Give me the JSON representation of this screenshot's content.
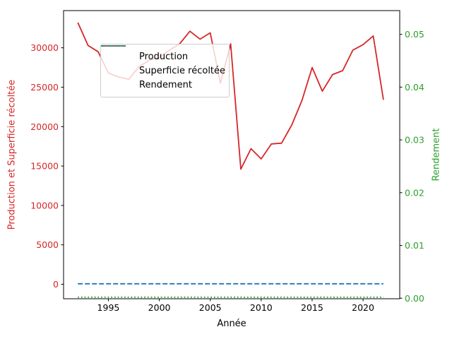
{
  "chart_data": {
    "type": "line",
    "title": "",
    "xlabel": "Année",
    "ylabel_left": "Production et Superficie récoltée",
    "ylabel_right": "Rendement",
    "x_years": [
      1992,
      1993,
      1994,
      1995,
      1996,
      1997,
      1998,
      1999,
      2000,
      2001,
      2002,
      2003,
      2004,
      2005,
      2006,
      2007,
      2008,
      2009,
      2010,
      2011,
      2012,
      2013,
      2014,
      2015,
      2016,
      2017,
      2018,
      2019,
      2020,
      2021,
      2022
    ],
    "series": [
      {
        "name": "Production",
        "color": "#d62728",
        "line_style": "solid",
        "axis": "left",
        "values": [
          33200,
          30300,
          29500,
          26800,
          26300,
          26000,
          27600,
          28400,
          28800,
          29700,
          30500,
          32100,
          31100,
          31900,
          25500,
          30500,
          14600,
          17200,
          15900,
          17800,
          17900,
          20200,
          23300,
          27500,
          24500,
          26600,
          27100,
          29700,
          30400,
          31500,
          23400
        ]
      },
      {
        "name": "Superficie récoltée",
        "color": "#1f77b4",
        "line_style": "dashed",
        "axis": "left",
        "values": [
          60,
          60,
          60,
          60,
          60,
          60,
          60,
          60,
          60,
          60,
          60,
          60,
          60,
          60,
          60,
          60,
          60,
          60,
          60,
          60,
          60,
          60,
          60,
          60,
          60,
          60,
          60,
          60,
          60,
          60,
          60
        ]
      },
      {
        "name": "Rendement",
        "color": "#2ca02c",
        "line_style": "dotted",
        "axis": "right",
        "values": [
          0.0002,
          0.0002,
          0.0002,
          0.0002,
          0.0002,
          0.0002,
          0.0002,
          0.0002,
          0.0002,
          0.0002,
          0.0002,
          0.0002,
          0.0002,
          0.0002,
          0.0002,
          0.0002,
          0.0002,
          0.0002,
          0.0002,
          0.0002,
          0.0002,
          0.0002,
          0.0002,
          0.0002,
          0.0002,
          0.0002,
          0.0002,
          0.0002,
          0.0002,
          0.0002,
          0.0002
        ]
      }
    ],
    "xlim": [
      1990.6,
      2023.6
    ],
    "ylim_left": [
      -1840,
      34720
    ],
    "ylim_right": [
      -0.0001,
      0.0545
    ],
    "xticks": [
      {
        "v": 1995,
        "label": "1995"
      },
      {
        "v": 2000,
        "label": "2000"
      },
      {
        "v": 2005,
        "label": "2005"
      },
      {
        "v": 2010,
        "label": "2010"
      },
      {
        "v": 2015,
        "label": "2015"
      },
      {
        "v": 2020,
        "label": "2020"
      }
    ],
    "yticks_left": [
      {
        "v": 0,
        "label": "0"
      },
      {
        "v": 5000,
        "label": "5000"
      },
      {
        "v": 10000,
        "label": "10000"
      },
      {
        "v": 15000,
        "label": "15000"
      },
      {
        "v": 20000,
        "label": "20000"
      },
      {
        "v": 25000,
        "label": "25000"
      },
      {
        "v": 30000,
        "label": "30000"
      }
    ],
    "yticks_right": [
      {
        "v": 0.0,
        "label": "0.00"
      },
      {
        "v": 0.01,
        "label": "0.01"
      },
      {
        "v": 0.02,
        "label": "0.02"
      },
      {
        "v": 0.03,
        "label": "0.03"
      },
      {
        "v": 0.04,
        "label": "0.04"
      },
      {
        "v": 0.05,
        "label": "0.05"
      }
    ],
    "grid": false,
    "legend_position": "upper-left-inside",
    "axis_label_color_left": "#d62728",
    "axis_label_color_right": "#2ca02c",
    "tick_color": "#000000",
    "background": "#ffffff"
  }
}
